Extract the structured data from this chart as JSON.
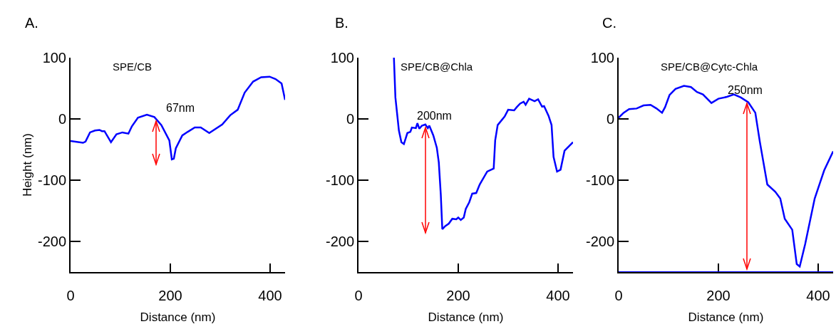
{
  "chart_data": [
    {
      "type": "line",
      "title": "A.",
      "xlabel": "Distance (nm)",
      "ylabel": "Height (nm)",
      "xlim": [
        0,
        430
      ],
      "ylim": [
        -250,
        100
      ],
      "xticks": [
        0,
        200,
        400
      ],
      "yticks": [
        -200,
        -100,
        0,
        100
      ],
      "grid": false,
      "marker": "none",
      "line_style": "solid",
      "annotations": [
        "SPE/CB",
        "67nm"
      ],
      "series": [
        {
          "color": "#0000ff",
          "x": [
            0,
            25,
            30,
            39,
            49,
            58,
            63,
            68,
            81,
            92,
            104,
            116,
            123,
            135,
            153,
            168,
            182,
            198,
            203,
            207,
            211,
            224,
            235,
            249,
            261,
            278,
            304,
            320,
            335,
            349,
            366,
            382,
            399,
            411,
            423,
            430
          ],
          "values": [
            -36,
            -39,
            -37,
            -22,
            -19,
            -18,
            -20,
            -20,
            -38,
            -25,
            -22,
            -24,
            -12,
            2,
            7,
            3,
            -10,
            -35,
            -66,
            -65,
            -48,
            -27,
            -21,
            -14,
            -14,
            -23,
            -9,
            6,
            15,
            43,
            61,
            68,
            69,
            65,
            58,
            31
          ]
        }
      ]
    },
    {
      "type": "line",
      "title": "B.",
      "xlabel": "Distance (nm)",
      "xlim": [
        0,
        430
      ],
      "ylim": [
        -250,
        100
      ],
      "xticks": [
        0,
        200,
        400
      ],
      "yticks": [
        -200,
        -100,
        0,
        100
      ],
      "grid": false,
      "marker": "none",
      "line_style": "solid",
      "annotations": [
        "SPE/CB@Chla",
        "200nm"
      ],
      "series": [
        {
          "color": "#0000ff",
          "x": [
            71,
            74,
            81,
            86,
            91,
            98,
            104,
            107,
            115,
            118,
            122,
            127,
            134,
            139,
            142,
            150,
            157,
            161,
            165,
            168,
            174,
            181,
            188,
            196,
            200,
            205,
            211,
            215,
            222,
            228,
            236,
            243,
            258,
            271,
            274,
            279,
            293,
            300,
            312,
            317,
            324,
            331,
            335,
            342,
            353,
            360,
            368,
            372,
            381,
            387,
            391,
            398,
            405,
            413,
            424,
            430
          ],
          "values": [
            100,
            35,
            -19,
            -38,
            -41,
            -23,
            -21,
            -14,
            -15,
            -7,
            -16,
            -11,
            -9,
            -15,
            -11,
            -27,
            -47,
            -71,
            -124,
            -180,
            -175,
            -171,
            -163,
            -164,
            -161,
            -165,
            -161,
            -147,
            -136,
            -122,
            -121,
            -107,
            -86,
            -81,
            -35,
            -10,
            4,
            15,
            14,
            19,
            25,
            28,
            23,
            33,
            29,
            32,
            20,
            21,
            5,
            -10,
            -62,
            -86,
            -83,
            -52,
            -43,
            -38
          ]
        }
      ]
    },
    {
      "type": "line",
      "title": "C.",
      "xlabel": "Distance (nm)",
      "xlim": [
        0,
        430
      ],
      "ylim": [
        -250,
        100
      ],
      "xticks": [
        0,
        200,
        400
      ],
      "yticks": [
        -200,
        -100,
        0,
        100
      ],
      "grid": false,
      "marker": "none",
      "line_style": "solid",
      "annotations": [
        "SPE/CB@Cytc-Chla",
        "250nm"
      ],
      "ref_lines": [
        {
          "axis": "y",
          "value": -250,
          "color": "#0000ff"
        }
      ],
      "series": [
        {
          "color": "#0000ff",
          "x": [
            0,
            10,
            21,
            36,
            50,
            64,
            76,
            87,
            93,
            102,
            114,
            131,
            145,
            157,
            169,
            186,
            200,
            217,
            231,
            245,
            260,
            274,
            283,
            298,
            314,
            324,
            333,
            348,
            357,
            363,
            374,
            393,
            412,
            430
          ],
          "values": [
            2,
            10,
            16,
            17,
            22,
            23,
            17,
            10,
            19,
            39,
            49,
            54,
            52,
            44,
            40,
            26,
            33,
            36,
            40,
            35,
            27,
            10,
            -37,
            -107,
            -119,
            -130,
            -163,
            -181,
            -237,
            -241,
            -204,
            -130,
            -84,
            -53
          ]
        }
      ]
    }
  ]
}
